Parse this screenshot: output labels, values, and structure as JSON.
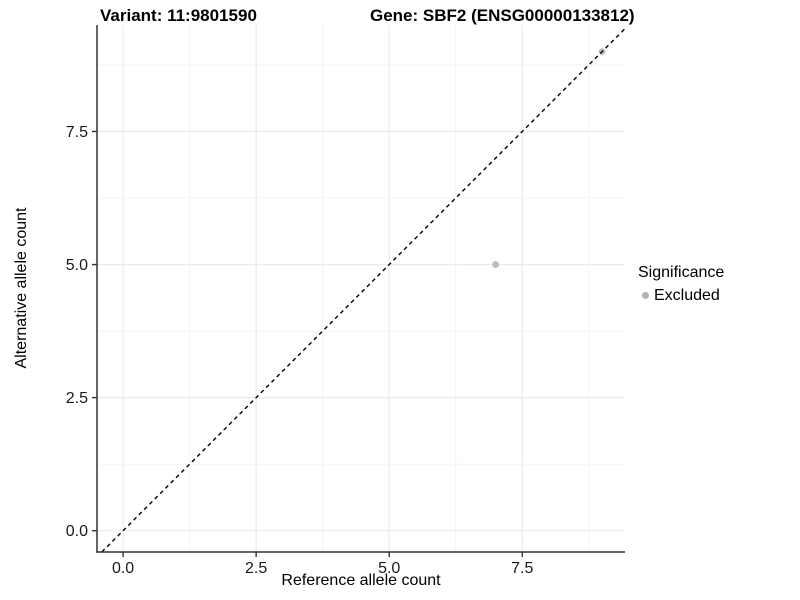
{
  "chart_data": {
    "type": "scatter",
    "title_left": "Variant: 11:9801590",
    "title_right": "Gene: SBF2 (ENSG00000133812)",
    "xlabel": "Reference allele count",
    "ylabel": "Alternative allele count",
    "xlim": [
      -0.49,
      9.43
    ],
    "ylim": [
      -0.4,
      9.5
    ],
    "x_ticks": {
      "values": [
        0,
        2.5,
        5,
        7.5
      ],
      "labels": [
        "0.0",
        "2.5",
        "5.0",
        "7.5"
      ]
    },
    "y_ticks": {
      "values": [
        0,
        2.5,
        5,
        7.5
      ],
      "labels": [
        "0.0",
        "2.5",
        "5.0",
        "7.5"
      ]
    },
    "x_minor_ticks": [
      1.25,
      3.75,
      6.25,
      8.75
    ],
    "y_minor_ticks": [
      1.25,
      3.75,
      6.25,
      8.75
    ],
    "grid": "major+minor",
    "identity_line": {
      "equation": "y = x",
      "style": "dashed",
      "color": "#000000"
    },
    "series": [
      {
        "name": "Excluded",
        "color": "#bdbdbd",
        "marker": "circle",
        "points": [
          [
            7,
            5
          ],
          [
            9,
            9
          ]
        ]
      }
    ],
    "legend": {
      "title": "Significance",
      "position": "right",
      "items": [
        {
          "label": "Excluded",
          "color": "#b3b3b3",
          "marker": "circle"
        }
      ]
    },
    "style": {
      "background": "#ffffff",
      "grid_major_color": "#ebebeb",
      "grid_minor_color": "#f4f4f4",
      "axis_color": "#333333",
      "tick_label_color": "#1a1a1a",
      "point_radius": 3.4
    }
  }
}
